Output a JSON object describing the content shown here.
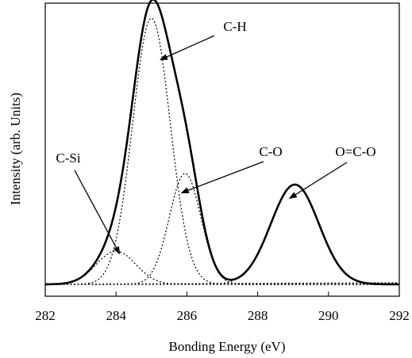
{
  "chart_data": {
    "type": "line",
    "title": "",
    "xlabel": "Bonding Energy (eV)",
    "ylabel": "Intensity (arb. Units)",
    "xlim": [
      282,
      292
    ],
    "ylim": [
      0,
      1.0
    ],
    "x_ticks": [
      282,
      284,
      286,
      288,
      290,
      292
    ],
    "x_tick_labels": [
      "282",
      "284",
      "286",
      "288",
      "290",
      "292"
    ],
    "y_ticks_shown": false,
    "grid": false,
    "legend": "none",
    "series": [
      {
        "style": "solid",
        "components": "sum",
        "color": "#000000"
      },
      {
        "name": "C-H",
        "style": "dotted",
        "shape": "gaussian",
        "center": 285.0,
        "amplitude": 0.96,
        "fwhm": 1.25
      },
      {
        "name": "C-O",
        "style": "dotted",
        "shape": "gaussian",
        "center": 285.95,
        "amplitude": 0.4,
        "fwhm": 1.05
      },
      {
        "name": "O=C-O",
        "style": "dotted",
        "shape": "gaussian",
        "center": 289.05,
        "amplitude": 0.36,
        "fwhm": 1.6
      },
      {
        "name": "C-Si",
        "style": "dotted",
        "shape": "gaussian",
        "center": 284.0,
        "amplitude": 0.12,
        "fwhm": 1.3
      }
    ],
    "baseline": 0.02,
    "annotations": [
      {
        "text": "C-H",
        "x": 285.25,
        "y": 0.83
      },
      {
        "text": "C-O",
        "x": 285.85,
        "y": 0.35
      },
      {
        "text": "O=C-O",
        "x": 288.9,
        "y": 0.33
      },
      {
        "text": "C-Si",
        "x": 284.1,
        "y": 0.13
      }
    ]
  },
  "colors": {
    "line": "#000000",
    "background": "#ffffff"
  }
}
